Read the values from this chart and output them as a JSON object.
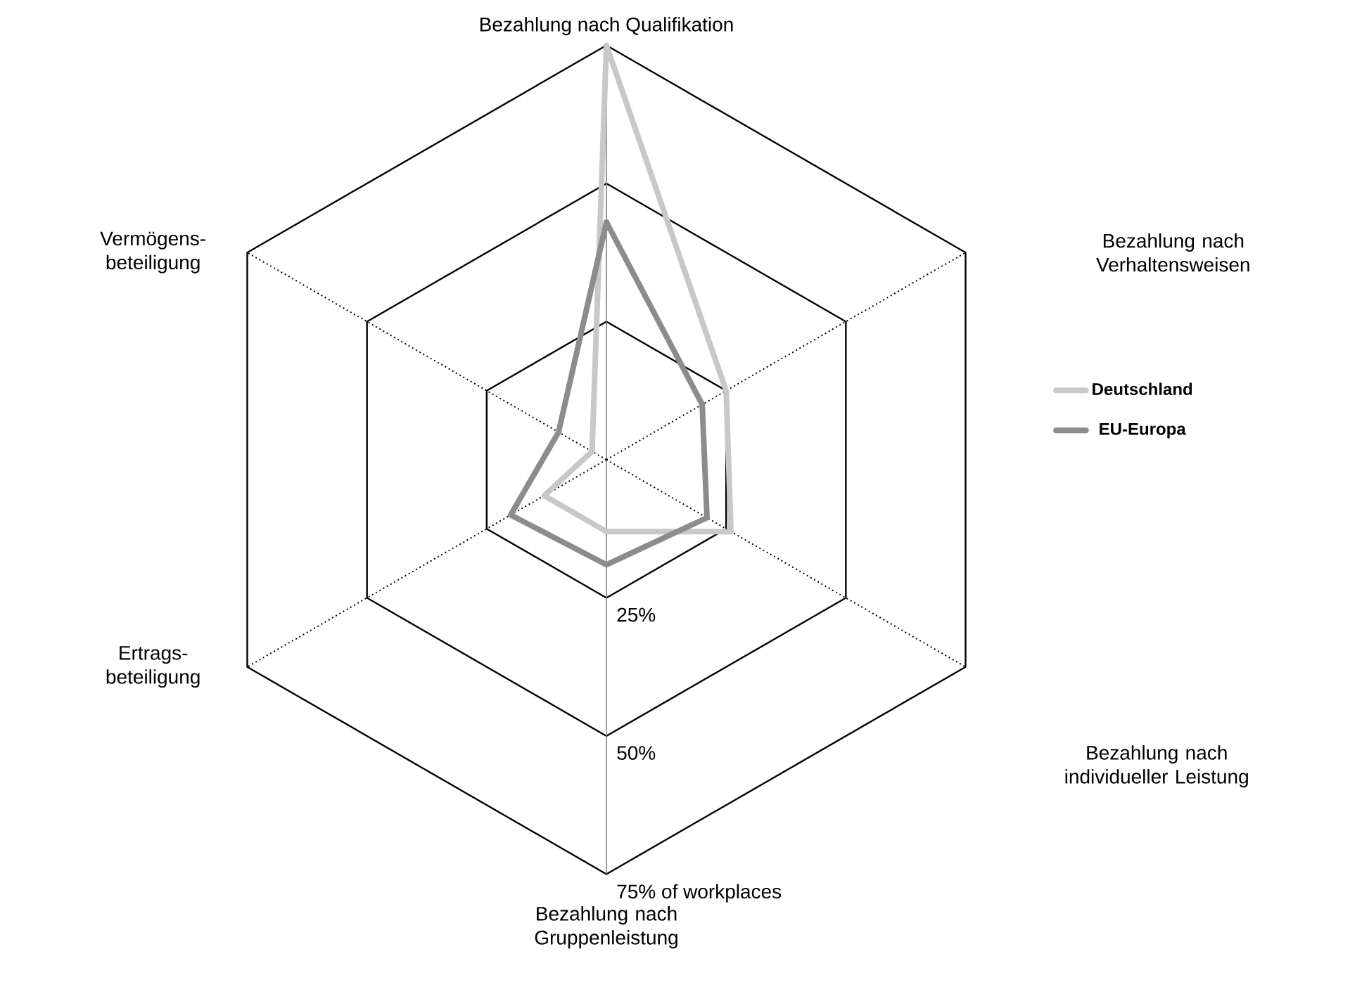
{
  "chart_data": {
    "type": "radar",
    "categories": [
      "Bezahlung nach Qualifikation",
      "Bezahlung nach Verhaltensweisen",
      "Bezahlung nach individueller Leistung",
      "Bezahlung nach Gruppenleistung",
      "Ertrags-beteiligung",
      "Vermögens-beteiligung"
    ],
    "series": [
      {
        "name": "Deutschland",
        "color": "#c8c8c8",
        "values": [
          75,
          25,
          26,
          13,
          13,
          3
        ]
      },
      {
        "name": "EU-Europa",
        "color": "#8c8c8c",
        "values": [
          43,
          20,
          21,
          19,
          20,
          10
        ]
      }
    ],
    "ylim": [
      0,
      75
    ],
    "yticks": [
      {
        "value": 25,
        "label": "25%"
      },
      {
        "value": 50,
        "label": "50%"
      },
      {
        "value": 75,
        "label": "75% of workplaces"
      }
    ],
    "legend": "right",
    "marker": "none",
    "line_style": "solid"
  }
}
